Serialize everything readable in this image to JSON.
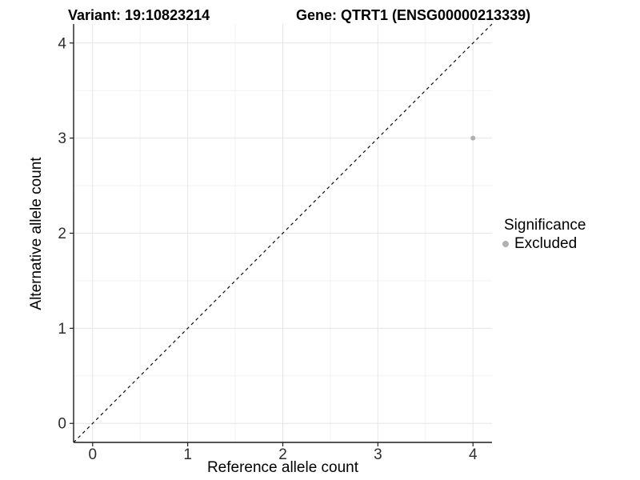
{
  "chart_data": {
    "type": "scatter",
    "titles": {
      "left": "Variant: 19:10823214",
      "right": "Gene: QTRT1 (ENSG00000213339)"
    },
    "xlabel": "Reference allele count",
    "ylabel": "Alternative allele count",
    "xlim": [
      -0.2,
      4.2
    ],
    "ylim": [
      -0.2,
      4.2
    ],
    "xticks": [
      0,
      1,
      2,
      3,
      4
    ],
    "yticks": [
      0,
      1,
      2,
      3,
      4
    ],
    "minor_grid_step": 0.5,
    "grid": "major and minor gridlines, light gray on white panel",
    "points": [
      {
        "x": 4,
        "y": 3,
        "significance": "Excluded"
      }
    ],
    "identity_line": {
      "from": [
        -0.2,
        -0.2
      ],
      "to": [
        4.2,
        4.2
      ],
      "style": "dashed",
      "comment": "y = x reference line"
    },
    "legend": {
      "title": "Significance",
      "position": "right",
      "items": [
        {
          "label": "Excluded",
          "color": "#b0b0b0"
        }
      ]
    },
    "colors": {
      "point": "#b0b0b0",
      "axis_line": "#1f1f1f",
      "tick_text": "#2e2e2e",
      "grid_major": "#e6e6e6",
      "grid_minor": "#f2f2f2",
      "diagonal": "#0a0a0a",
      "background": "#ffffff"
    }
  }
}
